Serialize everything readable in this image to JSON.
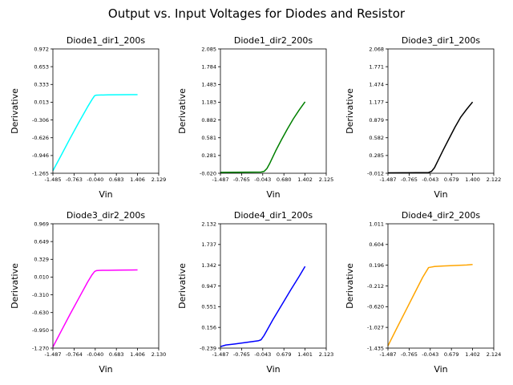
{
  "figure": {
    "title": "Output vs. Input Voltages for Diodes and Resistor"
  },
  "chart_data": [
    {
      "type": "line",
      "title": "Diode1_dir1_200s",
      "xlabel": "Vin",
      "ylabel": "Derivative",
      "color": "#00ffff",
      "xlim": [
        -1.485,
        2.129
      ],
      "ylim": [
        -1.265,
        0.972
      ],
      "xticks": [
        "-1.485",
        "-0.763",
        "-0.040",
        "0.683",
        "1.406",
        "2.129"
      ],
      "yticks": [
        "-1.265",
        "-0.946",
        "-0.626",
        "-0.306",
        "0.013",
        "0.333",
        "0.653",
        "0.972"
      ],
      "series": [
        {
          "x": [
            -1.485,
            -1.2,
            -0.9,
            -0.6,
            -0.3,
            -0.15,
            -0.06,
            0.0,
            0.1,
            0.4,
            0.8,
            1.2,
            1.406
          ],
          "y": [
            -1.22,
            -0.94,
            -0.64,
            -0.35,
            -0.07,
            0.06,
            0.13,
            0.14,
            0.142,
            0.145,
            0.148,
            0.15,
            0.15
          ]
        }
      ]
    },
    {
      "type": "line",
      "title": "Diode1_dir2_200s",
      "xlabel": "Vin",
      "ylabel": "Derivative",
      "color": "#008000",
      "xlim": [
        -1.487,
        2.125
      ],
      "ylim": [
        -0.02,
        2.085
      ],
      "xticks": [
        "-1.487",
        "-0.765",
        "-0.043",
        "0.680",
        "1.402",
        "2.125"
      ],
      "yticks": [
        "-0.020",
        "0.281",
        "0.581",
        "0.882",
        "1.183",
        "1.483",
        "1.784",
        "2.085"
      ],
      "series": [
        {
          "x": [
            -1.487,
            -1.0,
            -0.5,
            -0.1,
            0.0,
            0.1,
            0.2,
            0.4,
            0.6,
            0.8,
            1.0,
            1.2,
            1.402
          ],
          "y": [
            -0.005,
            -0.003,
            -0.002,
            0.0,
            0.01,
            0.06,
            0.15,
            0.36,
            0.55,
            0.73,
            0.9,
            1.05,
            1.19
          ]
        }
      ]
    },
    {
      "type": "line",
      "title": "Diode3_dir1_200s",
      "xlabel": "Vin",
      "ylabel": "Derivative",
      "color": "#000000",
      "xlim": [
        -1.487,
        2.122
      ],
      "ylim": [
        -0.012,
        2.068
      ],
      "xticks": [
        "-1.487",
        "-0.765",
        "-0.043",
        "0.679",
        "1.400",
        "2.122"
      ],
      "yticks": [
        "-0.012",
        "0.285",
        "0.582",
        "0.879",
        "1.177",
        "1.474",
        "1.771",
        "2.068"
      ],
      "series": [
        {
          "x": [
            -1.487,
            -1.0,
            -0.5,
            -0.1,
            0.0,
            0.1,
            0.2,
            0.4,
            0.6,
            0.8,
            1.0,
            1.2,
            1.4
          ],
          "y": [
            -0.005,
            -0.004,
            -0.002,
            0.0,
            0.02,
            0.08,
            0.18,
            0.38,
            0.57,
            0.76,
            0.93,
            1.06,
            1.18
          ]
        }
      ]
    },
    {
      "type": "line",
      "title": "Diode3_dir2_200s",
      "xlabel": "Vin",
      "ylabel": "Derivative",
      "color": "#ff00ff",
      "xlim": [
        -1.487,
        2.13
      ],
      "ylim": [
        -1.27,
        0.969
      ],
      "xticks": [
        "-1.487",
        "-0.764",
        "-0.040",
        "0.683",
        "1.406",
        "2.130"
      ],
      "yticks": [
        "-1.270",
        "-0.950",
        "-0.630",
        "-0.310",
        "0.010",
        "0.329",
        "0.649",
        "0.969"
      ],
      "series": [
        {
          "x": [
            -1.487,
            -1.2,
            -0.9,
            -0.6,
            -0.3,
            -0.15,
            -0.06,
            0.0,
            0.1,
            0.4,
            0.8,
            1.2,
            1.406
          ],
          "y": [
            -1.25,
            -0.96,
            -0.66,
            -0.37,
            -0.08,
            0.05,
            0.11,
            0.125,
            0.13,
            0.132,
            0.135,
            0.137,
            0.138
          ]
        }
      ]
    },
    {
      "type": "line",
      "title": "Diode4_dir1_200s",
      "xlabel": "Vin",
      "ylabel": "Derivative",
      "color": "#0000ff",
      "xlim": [
        -1.487,
        2.123
      ],
      "ylim": [
        -0.239,
        2.132
      ],
      "xticks": [
        "-1.487",
        "-0.765",
        "-0.043",
        "0.679",
        "1.401",
        "2.123"
      ],
      "yticks": [
        "-0.239",
        "0.156",
        "0.551",
        "0.947",
        "1.342",
        "1.737",
        "2.132"
      ],
      "series": [
        {
          "x": [
            -1.487,
            -1.3,
            -1.0,
            -0.6,
            -0.2,
            -0.1,
            0.0,
            0.1,
            0.3,
            0.6,
            0.9,
            1.2,
            1.401
          ],
          "y": [
            -0.21,
            -0.18,
            -0.16,
            -0.13,
            -0.1,
            -0.08,
            0.0,
            0.1,
            0.3,
            0.58,
            0.86,
            1.13,
            1.32
          ]
        }
      ]
    },
    {
      "type": "line",
      "title": "Diode4_dir2_200s",
      "xlabel": "Vin",
      "ylabel": "Derivative",
      "color": "#ffa500",
      "xlim": [
        -1.487,
        2.124
      ],
      "ylim": [
        -1.435,
        1.011
      ],
      "xticks": [
        "-1.487",
        "-0.765",
        "-0.043",
        "0.679",
        "1.402",
        "2.124"
      ],
      "yticks": [
        "-1.435",
        "-1.027",
        "-0.620",
        "-0.212",
        "0.196",
        "0.604",
        "1.011"
      ],
      "series": [
        {
          "x": [
            -1.487,
            -1.2,
            -0.9,
            -0.6,
            -0.3,
            -0.1,
            0.0,
            0.1,
            0.4,
            0.8,
            1.2,
            1.402
          ],
          "y": [
            -1.39,
            -1.06,
            -0.72,
            -0.38,
            -0.04,
            0.15,
            0.16,
            0.17,
            0.18,
            0.19,
            0.2,
            0.21
          ]
        }
      ]
    }
  ]
}
